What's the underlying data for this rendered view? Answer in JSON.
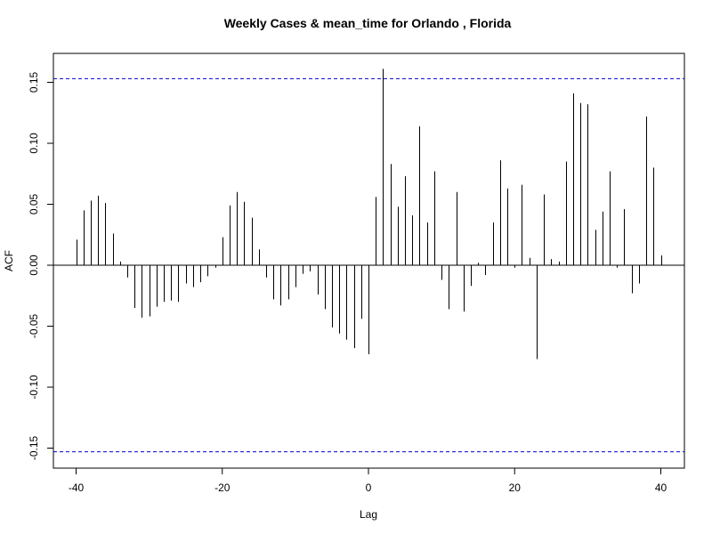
{
  "chart_data": {
    "type": "bar",
    "title": "Weekly Cases & mean_time for Orlando , Florida",
    "xlabel": "Lag",
    "ylabel": "ACF",
    "xlim": [
      -40,
      40
    ],
    "ylim": [
      -0.165,
      0.165
    ],
    "x_ticks": [
      -40,
      -20,
      0,
      20,
      40
    ],
    "x_tick_labels": [
      "-40",
      "-20",
      "0",
      "20",
      "40"
    ],
    "y_ticks": [
      -0.15,
      -0.1,
      -0.05,
      0.0,
      0.05,
      0.1,
      0.15
    ],
    "y_tick_labels": [
      "-0.15",
      "-0.10",
      "-0.05",
      "0.00",
      "0.05",
      "0.10",
      "0.15"
    ],
    "confidence_bounds": [
      0.153,
      -0.153
    ],
    "confidence_color": "#0000cc",
    "bar_color": "#000000",
    "lags": [
      -40,
      -39,
      -38,
      -37,
      -36,
      -35,
      -34,
      -33,
      -32,
      -31,
      -30,
      -29,
      -28,
      -27,
      -26,
      -25,
      -24,
      -23,
      -22,
      -21,
      -20,
      -19,
      -18,
      -17,
      -16,
      -15,
      -14,
      -13,
      -12,
      -11,
      -10,
      -9,
      -8,
      -7,
      -6,
      -5,
      -4,
      -3,
      -2,
      -1,
      0,
      1,
      2,
      3,
      4,
      5,
      6,
      7,
      8,
      9,
      10,
      11,
      12,
      13,
      14,
      15,
      16,
      17,
      18,
      19,
      20,
      21,
      22,
      23,
      24,
      25,
      26,
      27,
      28,
      29,
      30,
      31,
      32,
      33,
      34,
      35,
      36,
      37,
      38,
      39,
      40
    ],
    "values": [
      0.021,
      0.045,
      0.053,
      0.057,
      0.051,
      0.026,
      0.003,
      -0.01,
      -0.035,
      -0.043,
      -0.042,
      -0.034,
      -0.03,
      -0.029,
      -0.03,
      -0.015,
      -0.018,
      -0.014,
      -0.009,
      -0.002,
      0.023,
      0.049,
      0.06,
      0.052,
      0.039,
      0.013,
      -0.01,
      -0.028,
      -0.033,
      -0.028,
      -0.018,
      -0.007,
      -0.005,
      -0.024,
      -0.036,
      -0.051,
      -0.056,
      -0.061,
      -0.068,
      -0.044,
      -0.073,
      0.056,
      0.161,
      0.083,
      0.048,
      0.073,
      0.041,
      0.114,
      0.035,
      0.077,
      -0.012,
      -0.036,
      0.06,
      -0.038,
      -0.017,
      0.002,
      -0.008,
      0.035,
      0.086,
      0.063,
      -0.002,
      0.066,
      0.006,
      -0.077,
      0.058,
      0.005,
      0.003,
      0.085,
      0.141,
      0.133,
      0.132,
      0.029,
      0.044,
      0.077,
      -0.002,
      0.046,
      -0.023,
      -0.015,
      0.122,
      0.08,
      0.008
    ]
  }
}
